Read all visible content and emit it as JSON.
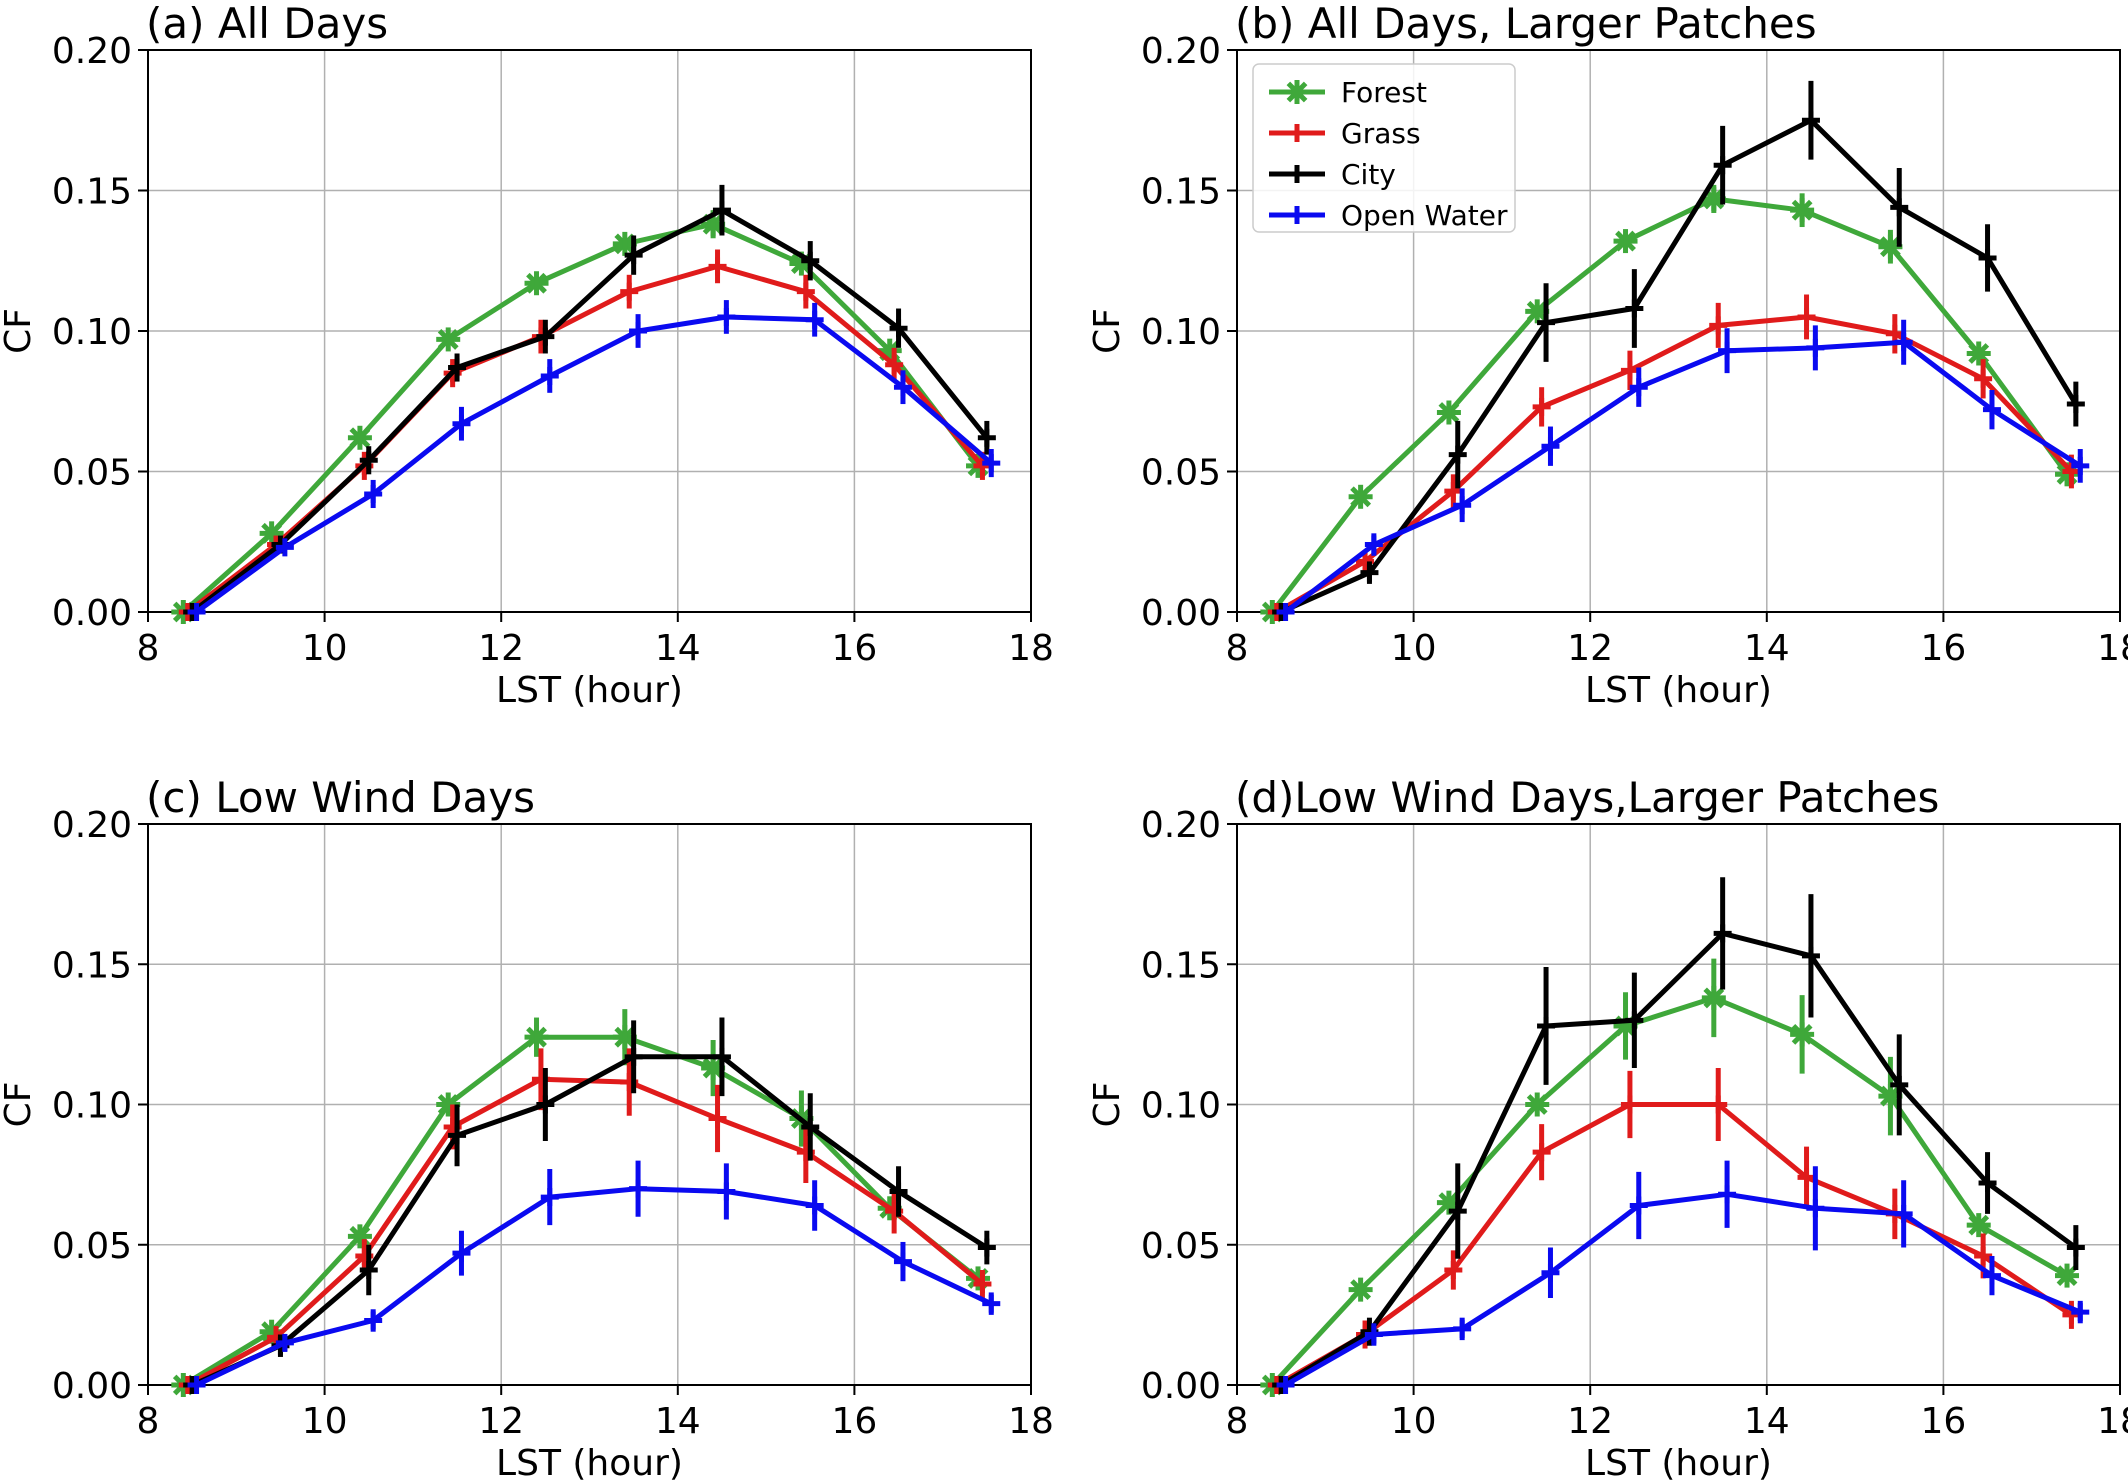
{
  "colors": {
    "Forest": "#3fa83a",
    "Grass": "#e01b1b",
    "City": "#000000",
    "Open Water": "#0a0af0"
  },
  "chart_data": [
    {
      "type": "line",
      "title": "(a) All Days",
      "xlabel": "LST (hour)",
      "ylabel": "CF",
      "xlim": [
        8,
        18
      ],
      "ylim": [
        0,
        0.2
      ],
      "xticks": [
        "8",
        "10",
        "12",
        "14",
        "16",
        "18"
      ],
      "yticks": [
        "0.00",
        "0.05",
        "0.10",
        "0.15",
        "0.20"
      ],
      "grid": true,
      "legend": [],
      "series": [
        {
          "name": "Forest",
          "marker": "star",
          "x": [
            8.4,
            9.4,
            10.4,
            11.4,
            12.4,
            13.4,
            14.4,
            15.4,
            16.4,
            17.4
          ],
          "y": [
            0.0,
            0.028,
            0.062,
            0.097,
            0.117,
            0.131,
            0.138,
            0.124,
            0.093,
            0.052
          ],
          "err": [
            0,
            0,
            0,
            0,
            0,
            0,
            0.005,
            0,
            0,
            0
          ]
        },
        {
          "name": "Grass",
          "marker": "plus",
          "x": [
            8.45,
            9.45,
            10.45,
            11.45,
            12.45,
            13.45,
            14.45,
            15.45,
            16.45,
            17.45
          ],
          "y": [
            0.0,
            0.024,
            0.052,
            0.085,
            0.098,
            0.114,
            0.123,
            0.114,
            0.088,
            0.052
          ],
          "err": [
            0,
            0,
            0.005,
            0.005,
            0.006,
            0.006,
            0.006,
            0.006,
            0.006,
            0.005
          ]
        },
        {
          "name": "City",
          "marker": "plus",
          "x": [
            8.5,
            9.5,
            10.5,
            11.5,
            12.5,
            13.5,
            14.5,
            15.5,
            16.5,
            17.5
          ],
          "y": [
            0.0,
            0.024,
            0.054,
            0.087,
            0.098,
            0.127,
            0.143,
            0.125,
            0.101,
            0.062
          ],
          "err": [
            0,
            0,
            0.005,
            0.005,
            0.006,
            0.007,
            0.009,
            0.007,
            0.007,
            0.006
          ]
        },
        {
          "name": "Open Water",
          "marker": "plus",
          "x": [
            8.55,
            9.55,
            10.55,
            11.55,
            12.55,
            13.55,
            14.55,
            15.55,
            16.55,
            17.55
          ],
          "y": [
            0.0,
            0.023,
            0.042,
            0.067,
            0.084,
            0.1,
            0.105,
            0.104,
            0.08,
            0.053
          ],
          "err": [
            0,
            0,
            0.005,
            0.006,
            0.006,
            0.006,
            0.006,
            0.006,
            0.006,
            0.005
          ]
        }
      ]
    },
    {
      "type": "line",
      "title": "(b) All Days, Larger Patches",
      "xlabel": "LST (hour)",
      "ylabel": "CF",
      "xlim": [
        8,
        18
      ],
      "ylim": [
        0,
        0.2
      ],
      "xticks": [
        "8",
        "10",
        "12",
        "14",
        "16",
        "18"
      ],
      "yticks": [
        "0.00",
        "0.05",
        "0.10",
        "0.15",
        "0.20"
      ],
      "grid": true,
      "legend": [
        "Forest",
        "Grass",
        "City",
        "Open Water"
      ],
      "legend_loc": "upper-left",
      "series": [
        {
          "name": "Forest",
          "marker": "star",
          "x": [
            8.4,
            9.4,
            10.4,
            11.4,
            12.4,
            13.4,
            14.4,
            15.4,
            16.4,
            17.4
          ],
          "y": [
            0.0,
            0.041,
            0.071,
            0.107,
            0.132,
            0.147,
            0.143,
            0.13,
            0.092,
            0.049
          ],
          "err": [
            0,
            0,
            0,
            0,
            0,
            0.005,
            0.006,
            0.006,
            0,
            0
          ]
        },
        {
          "name": "Grass",
          "marker": "plus",
          "x": [
            8.45,
            9.45,
            10.45,
            11.45,
            12.45,
            13.45,
            14.45,
            15.45,
            16.45,
            17.45
          ],
          "y": [
            0.0,
            0.018,
            0.043,
            0.073,
            0.086,
            0.102,
            0.105,
            0.099,
            0.083,
            0.05
          ],
          "err": [
            0,
            0.004,
            0.006,
            0.007,
            0.007,
            0.008,
            0.008,
            0.007,
            0.007,
            0.006
          ]
        },
        {
          "name": "City",
          "marker": "plus",
          "x": [
            8.5,
            9.5,
            10.5,
            11.5,
            12.5,
            13.5,
            14.5,
            15.5,
            16.5,
            17.5
          ],
          "y": [
            0.0,
            0.014,
            0.056,
            0.103,
            0.108,
            0.159,
            0.175,
            0.144,
            0.126,
            0.074
          ],
          "err": [
            0,
            0.004,
            0.012,
            0.014,
            0.014,
            0.014,
            0.014,
            0.014,
            0.012,
            0.008
          ]
        },
        {
          "name": "Open Water",
          "marker": "plus",
          "x": [
            8.55,
            9.55,
            10.55,
            11.55,
            12.55,
            13.55,
            14.55,
            15.55,
            16.55,
            17.55
          ],
          "y": [
            0.0,
            0.024,
            0.038,
            0.059,
            0.08,
            0.093,
            0.094,
            0.096,
            0.072,
            0.052
          ],
          "err": [
            0,
            0.004,
            0.006,
            0.007,
            0.007,
            0.008,
            0.008,
            0.008,
            0.007,
            0.006
          ]
        }
      ]
    },
    {
      "type": "line",
      "title": "(c) Low Wind Days",
      "xlabel": "LST (hour)",
      "ylabel": "CF",
      "xlim": [
        8,
        18
      ],
      "ylim": [
        0,
        0.2
      ],
      "xticks": [
        "8",
        "10",
        "12",
        "14",
        "16",
        "18"
      ],
      "yticks": [
        "0.00",
        "0.05",
        "0.10",
        "0.15",
        "0.20"
      ],
      "grid": true,
      "legend": [],
      "series": [
        {
          "name": "Forest",
          "marker": "star",
          "x": [
            8.4,
            9.4,
            10.4,
            11.4,
            12.4,
            13.4,
            14.4,
            15.4,
            16.4,
            17.4
          ],
          "y": [
            0.0,
            0.019,
            0.053,
            0.1,
            0.124,
            0.124,
            0.113,
            0.095,
            0.063,
            0.038
          ],
          "err": [
            0,
            0,
            0,
            0,
            0.007,
            0.01,
            0.01,
            0.01,
            0,
            0
          ]
        },
        {
          "name": "Grass",
          "marker": "plus",
          "x": [
            8.45,
            9.45,
            10.45,
            11.45,
            12.45,
            13.45,
            14.45,
            15.45,
            16.45,
            17.45
          ],
          "y": [
            0.0,
            0.017,
            0.046,
            0.092,
            0.109,
            0.108,
            0.095,
            0.083,
            0.062,
            0.036
          ],
          "err": [
            0,
            0.004,
            0.006,
            0.008,
            0.011,
            0.012,
            0.012,
            0.011,
            0.008,
            0.005
          ]
        },
        {
          "name": "City",
          "marker": "plus",
          "x": [
            8.5,
            9.5,
            10.5,
            11.5,
            12.5,
            13.5,
            14.5,
            15.5,
            16.5,
            17.5
          ],
          "y": [
            0.0,
            0.014,
            0.041,
            0.089,
            0.1,
            0.117,
            0.117,
            0.092,
            0.069,
            0.049
          ],
          "err": [
            0,
            0.004,
            0.009,
            0.011,
            0.013,
            0.013,
            0.014,
            0.012,
            0.009,
            0.006
          ]
        },
        {
          "name": "Open Water",
          "marker": "plus",
          "x": [
            8.55,
            9.55,
            10.55,
            11.55,
            12.55,
            13.55,
            14.55,
            15.55,
            16.55,
            17.55
          ],
          "y": [
            0.0,
            0.015,
            0.023,
            0.047,
            0.067,
            0.07,
            0.069,
            0.064,
            0.044,
            0.029
          ],
          "err": [
            0,
            0.003,
            0.004,
            0.008,
            0.01,
            0.01,
            0.01,
            0.009,
            0.007,
            0.004
          ]
        }
      ]
    },
    {
      "type": "line",
      "title": "(d)Low Wind Days,Larger Patches",
      "xlabel": "LST (hour)",
      "ylabel": "CF",
      "xlim": [
        8,
        18
      ],
      "ylim": [
        0,
        0.2
      ],
      "xticks": [
        "8",
        "10",
        "12",
        "14",
        "16",
        "18"
      ],
      "yticks": [
        "0.00",
        "0.05",
        "0.10",
        "0.15",
        "0.20"
      ],
      "grid": true,
      "legend": [],
      "series": [
        {
          "name": "Forest",
          "marker": "star",
          "x": [
            8.4,
            9.4,
            10.4,
            11.4,
            12.4,
            13.4,
            14.4,
            15.4,
            16.4,
            17.4
          ],
          "y": [
            0.0,
            0.034,
            0.065,
            0.1,
            0.128,
            0.138,
            0.125,
            0.103,
            0.057,
            0.039
          ],
          "err": [
            0,
            0,
            0,
            0,
            0.012,
            0.014,
            0.014,
            0.014,
            0,
            0
          ]
        },
        {
          "name": "Grass",
          "marker": "plus",
          "x": [
            8.45,
            9.45,
            10.45,
            11.45,
            12.45,
            13.45,
            14.45,
            15.45,
            16.45,
            17.45
          ],
          "y": [
            0.0,
            0.018,
            0.041,
            0.083,
            0.1,
            0.1,
            0.074,
            0.061,
            0.046,
            0.025
          ],
          "err": [
            0,
            0.005,
            0.007,
            0.01,
            0.012,
            0.013,
            0.011,
            0.009,
            0.008,
            0.005
          ]
        },
        {
          "name": "City",
          "marker": "plus",
          "x": [
            8.5,
            9.5,
            10.5,
            11.5,
            12.5,
            13.5,
            14.5,
            15.5,
            16.5,
            17.5
          ],
          "y": [
            0.0,
            0.019,
            0.062,
            0.128,
            0.13,
            0.161,
            0.153,
            0.107,
            0.072,
            0.049
          ],
          "err": [
            0,
            0.005,
            0.017,
            0.021,
            0.017,
            0.02,
            0.022,
            0.018,
            0.011,
            0.008
          ]
        },
        {
          "name": "Open Water",
          "marker": "plus",
          "x": [
            8.55,
            9.55,
            10.55,
            11.55,
            12.55,
            13.55,
            14.55,
            15.55,
            16.55,
            17.55
          ],
          "y": [
            0.0,
            0.018,
            0.02,
            0.04,
            0.064,
            0.068,
            0.063,
            0.061,
            0.039,
            0.026
          ],
          "err": [
            0,
            0.004,
            0.004,
            0.009,
            0.012,
            0.012,
            0.015,
            0.012,
            0.007,
            0.004
          ]
        }
      ]
    }
  ]
}
